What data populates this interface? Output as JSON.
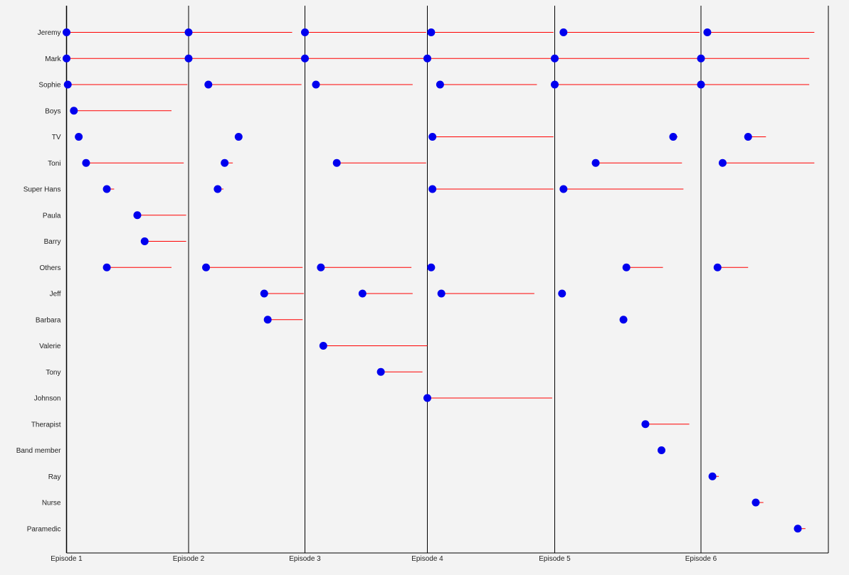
{
  "chart_data": {
    "type": "timeline",
    "colors": {
      "segment": "#ff0000",
      "dot": "#0000ee",
      "divider": "#000000",
      "background": "#f3f3f3"
    },
    "xlim": [
      0,
      6.9
    ],
    "episodes": [
      {
        "label": "Episode 1",
        "start": 0
      },
      {
        "label": "Episode 2",
        "start": 1
      },
      {
        "label": "Episode 3",
        "start": 2
      },
      {
        "label": "Episode 4",
        "start": 3
      },
      {
        "label": "Episode 5",
        "start": 4
      },
      {
        "label": "Episode 6",
        "start": 5
      }
    ],
    "rows": [
      {
        "name": "Jeremy",
        "segments": [
          [
            0.0,
            0.99
          ],
          [
            1.0,
            1.89
          ],
          [
            2.0,
            2.99
          ],
          [
            3.03,
            3.99
          ],
          [
            4.06,
            4.99
          ],
          [
            5.05,
            5.89
          ]
        ]
      },
      {
        "name": "Mark",
        "segments": [
          [
            0.0,
            0.99
          ],
          [
            1.0,
            1.99
          ],
          [
            2.0,
            2.99
          ],
          [
            3.0,
            3.99
          ],
          [
            4.0,
            4.99
          ],
          [
            5.0,
            5.85
          ]
        ]
      },
      {
        "name": "Sophie",
        "segments": [
          [
            0.01,
            0.99
          ],
          [
            1.17,
            1.97
          ],
          [
            2.09,
            2.88
          ],
          [
            3.1,
            3.86
          ],
          [
            4.0,
            4.99
          ],
          [
            5.0,
            5.85
          ]
        ]
      },
      {
        "name": "Boys",
        "segments": [
          [
            0.06,
            0.86
          ]
        ]
      },
      {
        "name": "TV",
        "segments": [
          [
            0.1,
            0.1
          ],
          [
            1.43,
            1.43
          ],
          [
            3.04,
            3.99
          ],
          [
            4.81,
            4.84
          ],
          [
            5.37,
            5.51
          ]
        ]
      },
      {
        "name": "Toni",
        "segments": [
          [
            0.16,
            0.96
          ],
          [
            1.31,
            1.38
          ],
          [
            2.26,
            2.99
          ],
          [
            4.28,
            4.87
          ],
          [
            5.17,
            5.89
          ]
        ]
      },
      {
        "name": "Super Hans",
        "segments": [
          [
            0.33,
            0.39
          ],
          [
            1.25,
            1.3
          ],
          [
            3.04,
            3.99
          ],
          [
            4.06,
            4.88
          ]
        ]
      },
      {
        "name": "Paula",
        "segments": [
          [
            0.58,
            0.98
          ]
        ]
      },
      {
        "name": "Barry",
        "segments": [
          [
            0.64,
            0.98
          ]
        ]
      },
      {
        "name": "Others",
        "segments": [
          [
            0.33,
            0.86
          ],
          [
            1.15,
            1.98
          ],
          [
            2.13,
            2.87
          ],
          [
            3.03,
            3.03
          ],
          [
            4.49,
            4.74
          ],
          [
            5.13,
            5.37
          ]
        ]
      },
      {
        "name": "Jeff",
        "segments": [
          [
            1.65,
            1.99
          ],
          [
            2.47,
            2.88
          ],
          [
            3.11,
            3.84
          ],
          [
            4.05,
            4.05
          ]
        ]
      },
      {
        "name": "Barbara",
        "segments": [
          [
            1.68,
            1.98
          ],
          [
            4.47,
            4.47
          ]
        ]
      },
      {
        "name": "Valerie",
        "segments": [
          [
            2.15,
            3.0
          ]
        ]
      },
      {
        "name": "Tony",
        "segments": [
          [
            2.62,
            2.96
          ]
        ]
      },
      {
        "name": "Johnson",
        "segments": [
          [
            3.0,
            3.98
          ]
        ]
      },
      {
        "name": "Therapist",
        "segments": [
          [
            4.62,
            4.92
          ]
        ]
      },
      {
        "name": "Band member",
        "segments": [
          [
            4.73,
            4.73
          ]
        ]
      },
      {
        "name": "Ray",
        "segments": [
          [
            5.09,
            5.14
          ]
        ]
      },
      {
        "name": "Nurse",
        "segments": [
          [
            5.43,
            5.49
          ]
        ]
      },
      {
        "name": "Paramedic",
        "segments": [
          [
            5.76,
            5.82
          ]
        ]
      }
    ]
  }
}
